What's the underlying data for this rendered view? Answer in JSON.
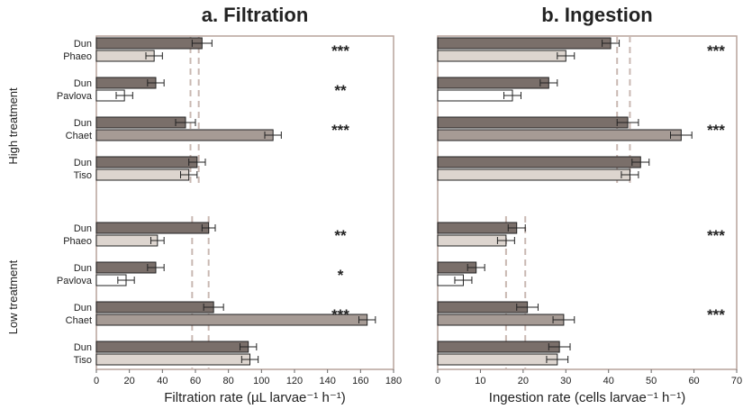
{
  "chart_data": [
    {
      "type": "bar",
      "orientation": "horizontal",
      "title": "a. Filtration",
      "xlabel": "Filtration rate (µL larvae⁻¹ h⁻¹)",
      "xlim": [
        0,
        180
      ],
      "xticks": [
        0,
        20,
        40,
        60,
        80,
        100,
        120,
        140,
        160,
        180
      ],
      "reference_lines": {
        "High treatment": [
          57,
          62
        ],
        "Low treatment": [
          58,
          68
        ]
      },
      "pairs": [
        {
          "group": "High treatment",
          "significance": "***",
          "bars": [
            {
              "label": "Dun",
              "value": 64,
              "error": 6
            },
            {
              "label": "Phaeo",
              "value": 35,
              "error": 5
            }
          ]
        },
        {
          "group": "High treatment",
          "significance": "**",
          "bars": [
            {
              "label": "Dun",
              "value": 36,
              "error": 5
            },
            {
              "label": "Pavlova",
              "value": 17,
              "error": 5
            }
          ]
        },
        {
          "group": "High treatment",
          "significance": "***",
          "bars": [
            {
              "label": "Dun",
              "value": 54,
              "error": 6
            },
            {
              "label": "Chaet",
              "value": 107,
              "error": 5
            }
          ]
        },
        {
          "group": "High treatment",
          "significance": "",
          "bars": [
            {
              "label": "Dun",
              "value": 61,
              "error": 5
            },
            {
              "label": "Tiso",
              "value": 56,
              "error": 5
            }
          ]
        },
        {
          "group": "Low treatment",
          "significance": "**",
          "bars": [
            {
              "label": "Dun",
              "value": 68,
              "error": 4
            },
            {
              "label": "Phaeo",
              "value": 37,
              "error": 4
            }
          ]
        },
        {
          "group": "Low treatment",
          "significance": "*",
          "bars": [
            {
              "label": "Dun",
              "value": 36,
              "error": 5
            },
            {
              "label": "Pavlova",
              "value": 18,
              "error": 5
            }
          ]
        },
        {
          "group": "Low treatment",
          "significance": "***",
          "bars": [
            {
              "label": "Dun",
              "value": 71,
              "error": 6
            },
            {
              "label": "Chaet",
              "value": 164,
              "error": 5
            }
          ]
        },
        {
          "group": "Low treatment",
          "significance": "",
          "bars": [
            {
              "label": "Dun",
              "value": 92,
              "error": 5
            },
            {
              "label": "Tiso",
              "value": 93,
              "error": 5
            }
          ]
        }
      ]
    },
    {
      "type": "bar",
      "orientation": "horizontal",
      "title": "b. Ingestion",
      "xlabel": "Ingestion rate (cells larvae⁻¹ h⁻¹)",
      "xlim": [
        0,
        70
      ],
      "xticks": [
        0,
        10,
        20,
        30,
        40,
        50,
        60,
        70
      ],
      "reference_lines": {
        "High treatment": [
          42,
          45
        ],
        "Low treatment": [
          16,
          20.5
        ]
      },
      "pairs": [
        {
          "group": "High treatment",
          "significance": "***",
          "bars": [
            {
              "label": "Dun",
              "value": 40.5,
              "error": 2
            },
            {
              "label": "Phaeo",
              "value": 30,
              "error": 2
            }
          ]
        },
        {
          "group": "High treatment",
          "significance": "",
          "bars": [
            {
              "label": "Dun",
              "value": 26,
              "error": 2
            },
            {
              "label": "Pavlova",
              "value": 17.5,
              "error": 2
            }
          ]
        },
        {
          "group": "High treatment",
          "significance": "***",
          "bars": [
            {
              "label": "Dun",
              "value": 44.5,
              "error": 2.5
            },
            {
              "label": "Chaet",
              "value": 57,
              "error": 2.5
            }
          ]
        },
        {
          "group": "High treatment",
          "significance": "",
          "bars": [
            {
              "label": "Dun",
              "value": 47.5,
              "error": 2
            },
            {
              "label": "Tiso",
              "value": 45,
              "error": 2
            }
          ]
        },
        {
          "group": "Low treatment",
          "significance": "***",
          "bars": [
            {
              "label": "Dun",
              "value": 18.5,
              "error": 2
            },
            {
              "label": "Phaeo",
              "value": 16,
              "error": 2
            }
          ]
        },
        {
          "group": "Low treatment",
          "significance": "",
          "bars": [
            {
              "label": "Dun",
              "value": 9,
              "error": 2
            },
            {
              "label": "Pavlova",
              "value": 6,
              "error": 2
            }
          ]
        },
        {
          "group": "Low treatment",
          "significance": "***",
          "bars": [
            {
              "label": "Dun",
              "value": 21,
              "error": 2.5
            },
            {
              "label": "Chaet",
              "value": 29.5,
              "error": 2.5
            }
          ]
        },
        {
          "group": "Low treatment",
          "significance": "",
          "bars": [
            {
              "label": "Dun",
              "value": 28.5,
              "error": 2.5
            },
            {
              "label": "Tiso",
              "value": 28,
              "error": 2.5
            }
          ]
        }
      ]
    }
  ],
  "groups": [
    "High treatment",
    "Low treatment"
  ],
  "colors": {
    "Dun": "#7a6f6a",
    "Phaeo": "#ddd5cf",
    "Pavlova": "#ffffff",
    "Chaet": "#a69b95",
    "Tiso": "#ddd5cf",
    "frame": "#b7a39b",
    "reference_line": "#c9b8b2",
    "bar_edge": "#222222"
  }
}
